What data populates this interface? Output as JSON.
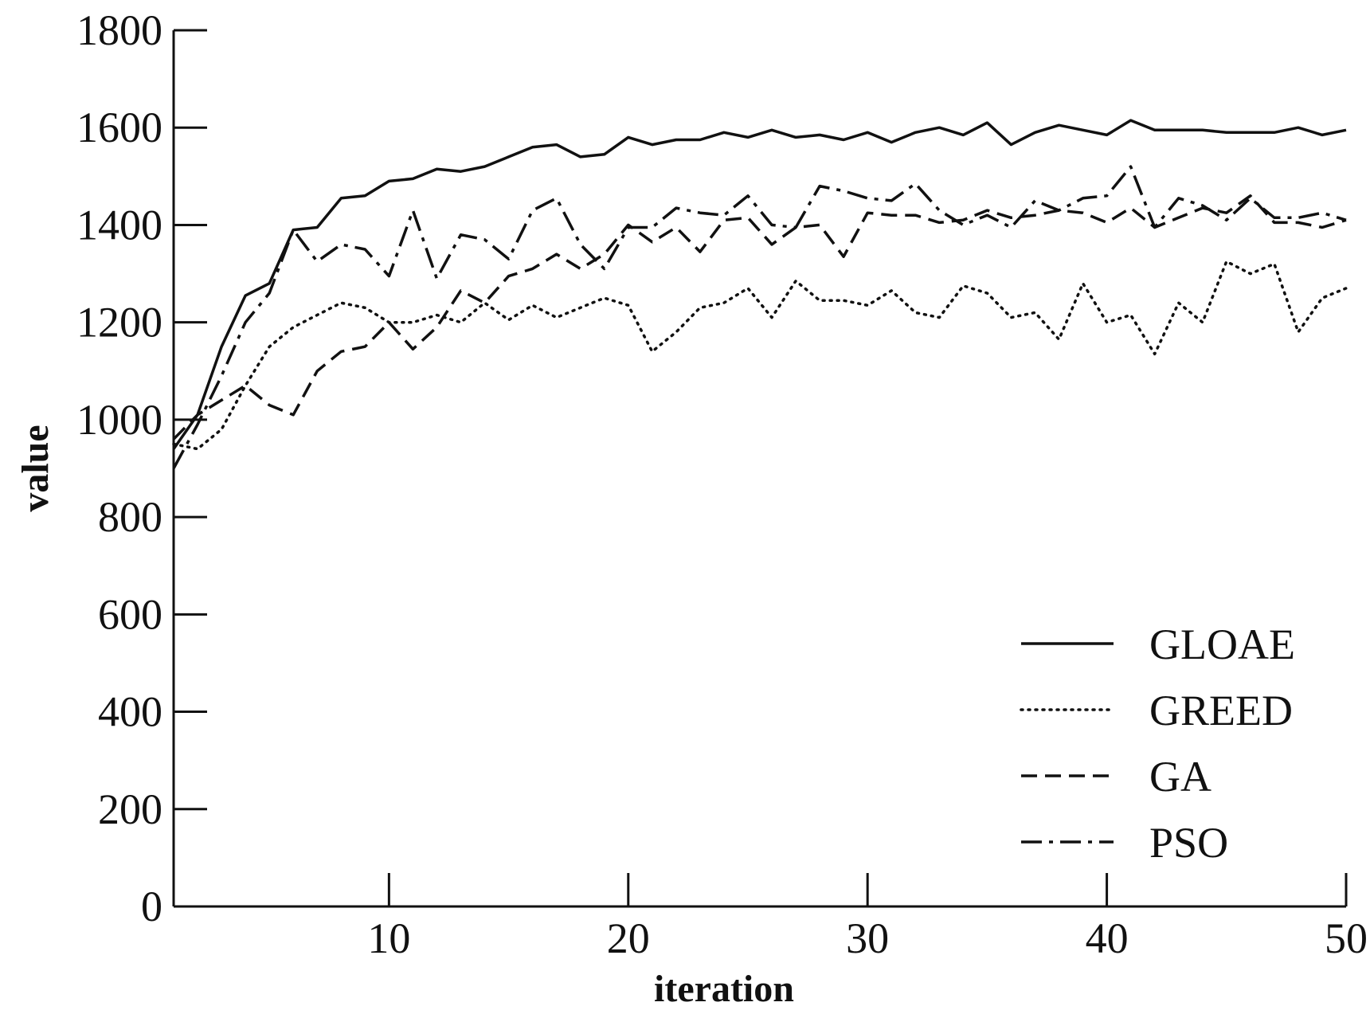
{
  "chart_data": {
    "type": "line",
    "title": "",
    "xlabel": "iteration",
    "ylabel": "value",
    "xlim": [
      1,
      50
    ],
    "ylim": [
      0,
      1800
    ],
    "xticks": [
      10,
      20,
      30,
      40,
      50
    ],
    "yticks": [
      0,
      200,
      400,
      600,
      800,
      1000,
      1200,
      1400,
      1600,
      1800
    ],
    "grid": false,
    "legend_position": "bottom-right",
    "x": [
      1,
      2,
      3,
      4,
      5,
      6,
      7,
      8,
      9,
      10,
      11,
      12,
      13,
      14,
      15,
      16,
      17,
      18,
      19,
      20,
      21,
      22,
      23,
      24,
      25,
      26,
      27,
      28,
      29,
      30,
      31,
      32,
      33,
      34,
      35,
      36,
      37,
      38,
      39,
      40,
      41,
      42,
      43,
      44,
      45,
      46,
      47,
      48,
      49,
      50
    ],
    "series": [
      {
        "name": "GLOAE",
        "style": "solid",
        "values": [
          940,
          1010,
          1150,
          1255,
          1280,
          1390,
          1395,
          1455,
          1460,
          1490,
          1495,
          1515,
          1510,
          1520,
          1540,
          1560,
          1565,
          1540,
          1545,
          1580,
          1565,
          1575,
          1575,
          1590,
          1580,
          1595,
          1580,
          1585,
          1575,
          1590,
          1570,
          1590,
          1600,
          1585,
          1610,
          1565,
          1590,
          1605,
          1595,
          1585,
          1615,
          1595,
          1595,
          1595,
          1590,
          1590,
          1590,
          1600,
          1585,
          1595
        ]
      },
      {
        "name": "GREED",
        "style": "dotted",
        "values": [
          950,
          940,
          980,
          1070,
          1150,
          1190,
          1215,
          1240,
          1230,
          1200,
          1200,
          1215,
          1200,
          1240,
          1205,
          1235,
          1210,
          1230,
          1250,
          1235,
          1140,
          1180,
          1230,
          1240,
          1270,
          1210,
          1285,
          1245,
          1245,
          1235,
          1265,
          1220,
          1210,
          1275,
          1260,
          1210,
          1220,
          1165,
          1280,
          1200,
          1215,
          1135,
          1240,
          1200,
          1325,
          1300,
          1320,
          1180,
          1250,
          1270
        ]
      },
      {
        "name": "GA",
        "style": "dashed",
        "values": [
          960,
          1010,
          1040,
          1070,
          1030,
          1010,
          1100,
          1140,
          1150,
          1200,
          1145,
          1190,
          1265,
          1240,
          1295,
          1310,
          1340,
          1310,
          1340,
          1400,
          1365,
          1395,
          1345,
          1410,
          1415,
          1360,
          1395,
          1400,
          1335,
          1425,
          1420,
          1420,
          1405,
          1410,
          1430,
          1415,
          1420,
          1430,
          1425,
          1405,
          1435,
          1395,
          1415,
          1435,
          1425,
          1460,
          1405,
          1405,
          1395,
          1410
        ]
      },
      {
        "name": "PSO",
        "style": "dashdot",
        "values": [
          900,
          990,
          1090,
          1200,
          1260,
          1390,
          1325,
          1360,
          1350,
          1295,
          1430,
          1290,
          1380,
          1370,
          1330,
          1430,
          1455,
          1360,
          1310,
          1395,
          1395,
          1435,
          1425,
          1420,
          1460,
          1400,
          1395,
          1480,
          1470,
          1455,
          1450,
          1485,
          1430,
          1400,
          1420,
          1395,
          1450,
          1430,
          1455,
          1460,
          1520,
          1395,
          1455,
          1440,
          1410,
          1455,
          1415,
          1415,
          1425,
          1410
        ]
      }
    ]
  }
}
